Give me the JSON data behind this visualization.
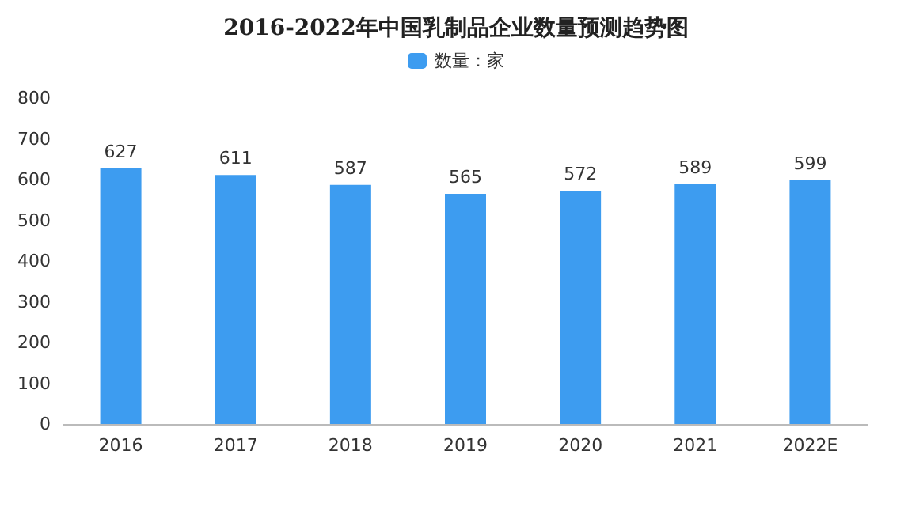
{
  "chart_data": {
    "type": "bar",
    "title": "2016-2022年中国乳制品企业数量预测趋势图",
    "categories": [
      "2016",
      "2017",
      "2018",
      "2019",
      "2020",
      "2021",
      "2022E"
    ],
    "series": [
      {
        "name": "数量：家",
        "color": "#3d9cf0",
        "values": [
          627,
          611,
          587,
          565,
          572,
          589,
          599
        ]
      }
    ],
    "ylim": [
      0,
      800
    ],
    "yticks": [
      0,
      100,
      200,
      300,
      400,
      500,
      600,
      700,
      800
    ],
    "data_labels": true,
    "grid": false,
    "legend": "top"
  }
}
